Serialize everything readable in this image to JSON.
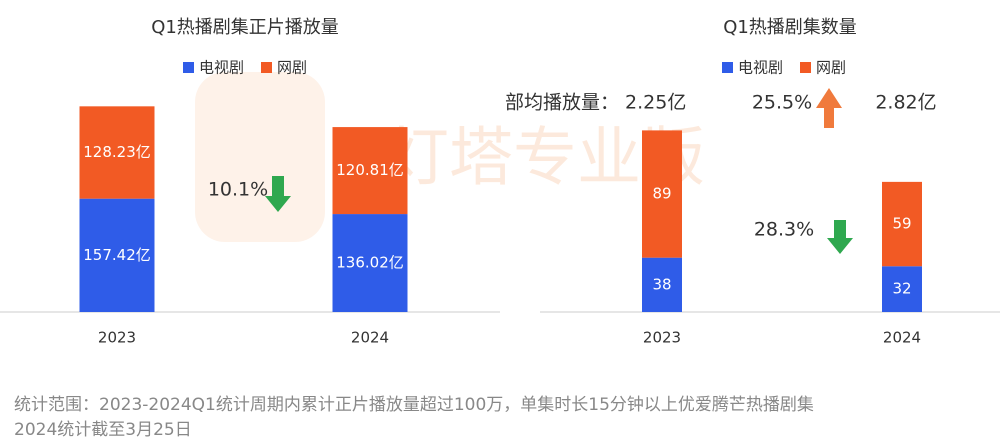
{
  "chart_data": [
    {
      "type": "bar",
      "stacked": true,
      "title": "Q1热播剧集正片播放量",
      "categories": [
        "2023",
        "2024"
      ],
      "series": [
        {
          "name": "电视剧",
          "color": "#2f5ce8",
          "values": [
            157.42,
            136.02
          ],
          "value_labels": [
            "157.42亿",
            "136.02亿"
          ]
        },
        {
          "name": "网剧",
          "color": "#f25a24",
          "values": [
            128.23,
            120.81
          ],
          "value_labels": [
            "128.23亿",
            "120.81亿"
          ]
        }
      ],
      "annotations": [
        "10.1%"
      ]
    },
    {
      "type": "bar",
      "stacked": true,
      "title": "Q1热播剧集数量",
      "categories": [
        "2023",
        "2024"
      ],
      "series": [
        {
          "name": "电视剧",
          "color": "#2f5ce8",
          "values": [
            38,
            32
          ]
        },
        {
          "name": "网剧",
          "color": "#f25a24",
          "values": [
            89,
            59
          ]
        }
      ],
      "annotations": [
        "部均播放量： 2.25亿",
        "25.5%",
        "2.82亿",
        "28.3%"
      ]
    }
  ],
  "watermark": "灯塔专业版",
  "footnote": [
    "统计范围：2023-2024Q1统计周期内累计正片播放量超过100万，单集时长15分钟以上优爱腾芒热播剧集",
    "2024统计截至3月25日"
  ]
}
